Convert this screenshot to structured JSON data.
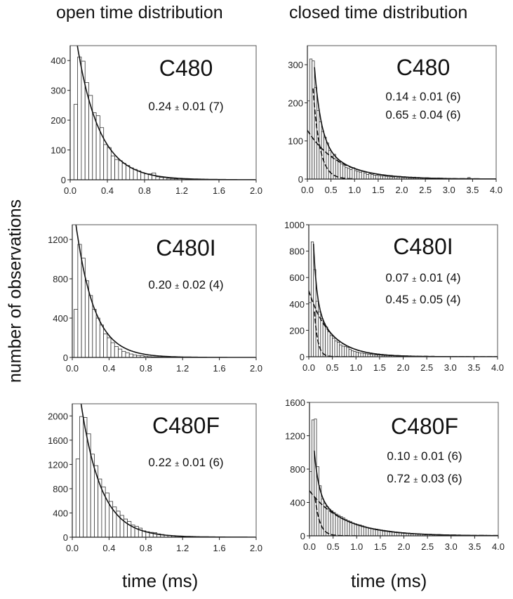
{
  "figure": {
    "column_titles": [
      "open time distribution",
      "closed time distribution"
    ],
    "ylabel": "number of observations",
    "xlabel": "time (ms)"
  },
  "chart_data": [
    {
      "type": "bar",
      "column": "open time distribution",
      "title": "C480",
      "annotations": [
        "0.24 ± 0.01 (7)"
      ],
      "xlabel": "time (ms)",
      "ylabel": "number of observations",
      "xlim": [
        0,
        2.0
      ],
      "ylim": [
        0,
        450
      ],
      "xticks": [
        "0.0",
        "0.4",
        "0.8",
        "1.2",
        "1.6",
        "2.0"
      ],
      "yticks": [
        "0",
        "100",
        "200",
        "300",
        "400"
      ],
      "ytick_values": [
        0,
        100,
        200,
        300,
        400
      ],
      "bin_width": 0.04,
      "bin_start": 0.04,
      "values": [
        253,
        412,
        398,
        326,
        283,
        225,
        215,
        175,
        118,
        108,
        80,
        68,
        64,
        55,
        48,
        40,
        35,
        30,
        24,
        20,
        20,
        23,
        10,
        8,
        7,
        5,
        4,
        3,
        5,
        3,
        2,
        2,
        1,
        1,
        2,
        1,
        1,
        1,
        1,
        0,
        1,
        0,
        0,
        0,
        0,
        0,
        0,
        0
      ],
      "fits": [
        {
          "name": "single exponential",
          "tau": 0.24,
          "amplitude": 620,
          "style": "solid"
        }
      ]
    },
    {
      "type": "bar",
      "column": "closed time distribution",
      "title": "C480",
      "annotations": [
        "0.14 ± 0.01 (6)",
        "0.65 ± 0.04 (6)"
      ],
      "xlabel": "time (ms)",
      "ylabel": "number of observations",
      "xlim": [
        0,
        4.0
      ],
      "ylim": [
        0,
        350
      ],
      "xticks": [
        "0.0",
        "0.5",
        "1.0",
        "1.5",
        "2.0",
        "2.5",
        "3.0",
        "3.5",
        "4.0"
      ],
      "yticks": [
        "0",
        "100",
        "200",
        "300"
      ],
      "ytick_values": [
        0,
        100,
        200,
        300
      ],
      "bin_width": 0.05,
      "bin_start": 0.0,
      "values": [
        205,
        315,
        310,
        240,
        180,
        150,
        125,
        110,
        95,
        75,
        60,
        65,
        50,
        45,
        40,
        35,
        30,
        28,
        25,
        30,
        22,
        20,
        18,
        20,
        16,
        12,
        14,
        12,
        10,
        10,
        9,
        8,
        8,
        7,
        6,
        6,
        5,
        6,
        5,
        5,
        4,
        4,
        4,
        3,
        3,
        5,
        3,
        3,
        3,
        3,
        2,
        2,
        2,
        2,
        2,
        3,
        2,
        2,
        1,
        1,
        1,
        1,
        1,
        1,
        1,
        1,
        1,
        1,
        4,
        1,
        1,
        1,
        1,
        1,
        1,
        1,
        1,
        1,
        1,
        1
      ],
      "fits": [
        {
          "name": "sum of exponentials",
          "style": "solid",
          "peak_x": 0.15,
          "peak_y": 320
        },
        {
          "name": "fast component",
          "tau": 0.14,
          "amplitude": 560,
          "style": "dashed"
        },
        {
          "name": "slow component",
          "tau": 0.65,
          "amplitude": 128,
          "style": "dashed"
        }
      ]
    },
    {
      "type": "bar",
      "column": "open time distribution",
      "title": "C480I",
      "annotations": [
        "0.20 ± 0.02 (4)"
      ],
      "xlabel": "time (ms)",
      "ylabel": "number of observations",
      "xlim": [
        0,
        2.0
      ],
      "ylim": [
        0,
        1350
      ],
      "xticks": [
        "0.0",
        "0.4",
        "0.8",
        "1.2",
        "1.6",
        "2.0"
      ],
      "yticks": [
        "0",
        "400",
        "800",
        "1200"
      ],
      "ytick_values": [
        0,
        400,
        800,
        1200
      ],
      "bin_width": 0.04,
      "bin_start": 0.02,
      "values": [
        490,
        1150,
        1010,
        780,
        630,
        490,
        400,
        330,
        240,
        200,
        150,
        110,
        85,
        62,
        48,
        35,
        25,
        20,
        18,
        12,
        8,
        6,
        5,
        4,
        3,
        2,
        2,
        1,
        1,
        1,
        1,
        1,
        0,
        0,
        0,
        0,
        0,
        0,
        0,
        0,
        0,
        0,
        0,
        0,
        0,
        0,
        0,
        0,
        0
      ],
      "fits": [
        {
          "name": "single exponential",
          "tau": 0.2,
          "amplitude": 1650,
          "style": "solid"
        }
      ]
    },
    {
      "type": "bar",
      "column": "closed time distribution",
      "title": "C480I",
      "annotations": [
        "0.07 ± 0.01 (4)",
        "0.45 ± 0.05 (4)"
      ],
      "xlabel": "time (ms)",
      "ylabel": "number of observations",
      "xlim": [
        0,
        4.0
      ],
      "ylim": [
        0,
        1000
      ],
      "xticks": [
        "0.0",
        "0.5",
        "1.0",
        "1.5",
        "2.0",
        "2.5",
        "3.0",
        "3.5",
        "4.0"
      ],
      "yticks": [
        "0",
        "200",
        "400",
        "600",
        "800",
        "1000"
      ],
      "ytick_values": [
        0,
        200,
        400,
        600,
        800,
        1000
      ],
      "bin_width": 0.05,
      "bin_start": 0.0,
      "values": [
        410,
        870,
        660,
        420,
        340,
        290,
        250,
        225,
        190,
        160,
        140,
        120,
        110,
        90,
        80,
        78,
        70,
        55,
        45,
        40,
        35,
        30,
        28,
        25,
        22,
        20,
        18,
        15,
        14,
        12,
        12,
        10,
        9,
        9,
        8,
        10,
        7,
        6,
        6,
        5,
        5,
        5,
        4,
        4,
        4,
        3,
        3,
        3,
        3,
        2,
        2,
        2,
        2,
        2,
        2,
        2,
        1,
        1,
        1,
        1,
        1,
        1,
        1,
        1,
        1,
        1,
        1,
        1,
        1,
        1,
        1,
        1,
        1,
        1,
        1,
        1,
        1,
        1,
        1,
        1
      ],
      "fits": [
        {
          "name": "sum of exponentials",
          "style": "solid",
          "peak_x": 0.1,
          "peak_y": 870
        },
        {
          "name": "fast component",
          "tau": 0.07,
          "amplitude": 1900,
          "style": "dashed"
        },
        {
          "name": "slow component",
          "tau": 0.45,
          "amplitude": 500,
          "style": "dashed"
        }
      ]
    },
    {
      "type": "bar",
      "column": "open time distribution",
      "title": "C480F",
      "annotations": [
        "0.22 ± 0.01 (6)"
      ],
      "xlabel": "time (ms)",
      "ylabel": "number of observations",
      "xlim": [
        0,
        2.0
      ],
      "ylim": [
        0,
        2200
      ],
      "xticks": [
        "0.0",
        "0.4",
        "0.8",
        "1.2",
        "1.6",
        "2.0"
      ],
      "yticks": [
        "0",
        "400",
        "800",
        "1200",
        "1600",
        "2000"
      ],
      "ytick_values": [
        0,
        400,
        800,
        1200,
        1600,
        2000
      ],
      "bin_width": 0.04,
      "bin_start": 0.04,
      "values": [
        1290,
        1990,
        1975,
        1705,
        1370,
        1180,
        960,
        830,
        730,
        590,
        500,
        430,
        360,
        300,
        260,
        200,
        180,
        150,
        105,
        90,
        80,
        75,
        55,
        45,
        35,
        28,
        22,
        18,
        15,
        12,
        10,
        8,
        7,
        6,
        5,
        4,
        4,
        3,
        3,
        2,
        2,
        2,
        1,
        1,
        1,
        1,
        1,
        1
      ],
      "fits": [
        {
          "name": "single exponential",
          "tau": 0.22,
          "amplitude": 3400,
          "style": "solid"
        }
      ]
    },
    {
      "type": "bar",
      "column": "closed time distribution",
      "title": "C480F",
      "annotations": [
        "0.10 ± 0.01 (6)",
        "0.72 ± 0.03 (6)"
      ],
      "xlabel": "time (ms)",
      "ylabel": "number of observations",
      "xlim": [
        0,
        4.0
      ],
      "ylim": [
        0,
        1600
      ],
      "xticks": [
        "0.0",
        "0.5",
        "1.0",
        "1.5",
        "2.0",
        "2.5",
        "3.0",
        "3.5",
        "4.0"
      ],
      "yticks": [
        "0",
        "400",
        "800",
        "1200",
        "1600"
      ],
      "ytick_values": [
        0,
        400,
        800,
        1200,
        1600
      ],
      "bin_width": 0.05,
      "bin_start": 0.0,
      "values": [
        770,
        1390,
        1400,
        830,
        600,
        440,
        390,
        350,
        320,
        300,
        280,
        260,
        245,
        230,
        215,
        195,
        180,
        170,
        155,
        145,
        135,
        130,
        120,
        110,
        100,
        95,
        90,
        85,
        80,
        75,
        70,
        66,
        62,
        58,
        54,
        50,
        47,
        44,
        41,
        38,
        35,
        32,
        30,
        28,
        26,
        24,
        22,
        20,
        19,
        18,
        17,
        16,
        15,
        14,
        13,
        12,
        11,
        11,
        10,
        10,
        9,
        9,
        8,
        8,
        7,
        7,
        6,
        6,
        6,
        5,
        5,
        5,
        4,
        4,
        4,
        4,
        3,
        3,
        3,
        3
      ],
      "fits": [
        {
          "name": "sum of exponentials",
          "style": "solid",
          "peak_x": 0.1,
          "peak_y": 1400
        },
        {
          "name": "fast component",
          "tau": 0.1,
          "amplitude": 1500,
          "style": "dashed"
        },
        {
          "name": "slow component",
          "tau": 0.72,
          "amplitude": 540,
          "style": "dashed"
        }
      ]
    }
  ]
}
